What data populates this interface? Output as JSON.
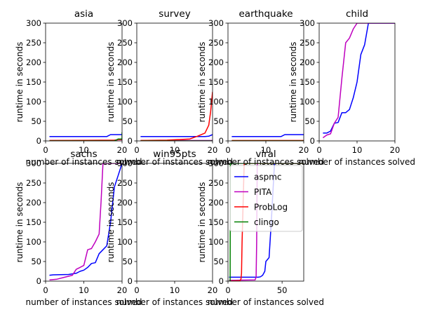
{
  "figure": {
    "legend": {
      "placement": "upper-left of viral panel",
      "entries": [
        {
          "name": "aspmc",
          "color": "#0000ff"
        },
        {
          "name": "PITA",
          "color": "#bf00bf"
        },
        {
          "name": "ProbLog",
          "color": "#ff0000"
        },
        {
          "name": "clingo",
          "color": "#008000"
        }
      ]
    }
  },
  "chart_data": [
    {
      "type": "line",
      "title": "asia",
      "xlabel": "number of instances solved",
      "ylabel": "runtime in seconds",
      "xlim": [
        0,
        20
      ],
      "ylim": [
        0,
        300
      ],
      "xticks": [
        0,
        10,
        20
      ],
      "yticks": [
        0,
        50,
        100,
        150,
        200,
        250,
        300
      ],
      "series": [
        {
          "name": "aspmc",
          "color": "#0000ff",
          "x": [
            1,
            16,
            17,
            20
          ],
          "y": [
            11,
            11,
            16,
            16
          ]
        },
        {
          "name": "PITA",
          "color": "#bf00bf",
          "x": [
            1,
            18,
            19,
            20
          ],
          "y": [
            1,
            1,
            3,
            3
          ]
        },
        {
          "name": "ProbLog",
          "color": "#ff0000",
          "x": [
            1,
            18,
            19,
            20
          ],
          "y": [
            1,
            2,
            3,
            4
          ]
        },
        {
          "name": "clingo",
          "color": "#008000",
          "x": [
            1,
            18,
            19,
            20,
            20
          ],
          "y": [
            0,
            0,
            5,
            5,
            22
          ]
        }
      ]
    },
    {
      "type": "line",
      "title": "survey",
      "xlabel": "number of instances solved",
      "ylabel": "runtime in seconds",
      "xlim": [
        0,
        20
      ],
      "ylim": [
        0,
        300
      ],
      "xticks": [
        0,
        10,
        20
      ],
      "yticks": [
        0,
        50,
        100,
        150,
        200,
        250,
        300
      ],
      "series": [
        {
          "name": "aspmc",
          "color": "#0000ff",
          "x": [
            1,
            18,
            19,
            20
          ],
          "y": [
            11,
            11,
            12,
            16
          ]
        },
        {
          "name": "PITA",
          "color": "#bf00bf",
          "x": [
            1,
            20
          ],
          "y": [
            1,
            1
          ]
        },
        {
          "name": "ProbLog",
          "color": "#ff0000",
          "x": [
            1,
            8,
            14,
            16,
            18,
            19,
            19.5,
            20
          ],
          "y": [
            1,
            2,
            5,
            12,
            20,
            40,
            75,
            125
          ]
        },
        {
          "name": "clingo",
          "color": "#008000",
          "x": [
            1,
            20
          ],
          "y": [
            0,
            0
          ]
        }
      ]
    },
    {
      "type": "line",
      "title": "earthquake",
      "xlabel": "number of instances solved",
      "ylabel": "runtime in seconds",
      "xlim": [
        0,
        20
      ],
      "ylim": [
        0,
        300
      ],
      "xticks": [
        0,
        10,
        20
      ],
      "yticks": [
        0,
        50,
        100,
        150,
        200,
        250,
        300
      ],
      "series": [
        {
          "name": "aspmc",
          "color": "#0000ff",
          "x": [
            1,
            14,
            15,
            20
          ],
          "y": [
            11,
            11,
            16,
            16
          ]
        },
        {
          "name": "PITA",
          "color": "#bf00bf",
          "x": [
            1,
            20
          ],
          "y": [
            0,
            0
          ]
        },
        {
          "name": "ProbLog",
          "color": "#ff0000",
          "x": [
            1,
            20
          ],
          "y": [
            1,
            1
          ]
        },
        {
          "name": "clingo",
          "color": "#008000",
          "x": [
            1,
            20
          ],
          "y": [
            0,
            0
          ]
        }
      ]
    },
    {
      "type": "line",
      "title": "child",
      "xlabel": "number of instances solved",
      "ylabel": "runtime in seconds",
      "xlim": [
        0,
        20
      ],
      "ylim": [
        0,
        300
      ],
      "xticks": [
        0,
        10,
        20
      ],
      "yticks": [
        0,
        50,
        100,
        150,
        200,
        250,
        300
      ],
      "series": [
        {
          "name": "aspmc",
          "color": "#0000ff",
          "x": [
            1,
            2,
            3,
            4,
            5,
            6,
            7,
            8,
            9,
            10,
            11,
            12,
            13,
            20
          ],
          "y": [
            20,
            20,
            25,
            45,
            47,
            72,
            72,
            80,
            110,
            150,
            220,
            245,
            300,
            300
          ]
        },
        {
          "name": "PITA",
          "color": "#bf00bf",
          "x": [
            1,
            2,
            3,
            4,
            5,
            6,
            7,
            8,
            9,
            10,
            20
          ],
          "y": [
            8,
            15,
            18,
            45,
            60,
            160,
            250,
            262,
            285,
            300,
            300
          ]
        },
        {
          "name": "ProbLog",
          "color": "#ff0000",
          "x": [],
          "y": []
        },
        {
          "name": "clingo",
          "color": "#008000",
          "x": [],
          "y": []
        }
      ]
    },
    {
      "type": "line",
      "title": "sachs",
      "xlabel": "number of instances solved",
      "ylabel": "runtime in seconds",
      "xlim": [
        0,
        20
      ],
      "ylim": [
        0,
        300
      ],
      "xticks": [
        0,
        10,
        20
      ],
      "yticks": [
        0,
        50,
        100,
        150,
        200,
        250,
        300
      ],
      "series": [
        {
          "name": "aspmc",
          "color": "#0000ff",
          "x": [
            1,
            2,
            6,
            8,
            9,
            10,
            11,
            12,
            13,
            14,
            15,
            16,
            17,
            18,
            19,
            20
          ],
          "y": [
            15,
            16,
            17,
            20,
            25,
            28,
            35,
            45,
            47,
            70,
            80,
            90,
            150,
            240,
            270,
            300
          ]
        },
        {
          "name": "PITA",
          "color": "#bf00bf",
          "x": [
            1,
            3,
            5,
            7,
            8,
            9,
            10,
            11,
            12,
            13,
            14,
            14.5,
            15,
            20
          ],
          "y": [
            3,
            5,
            10,
            15,
            30,
            35,
            40,
            80,
            83,
            100,
            120,
            200,
            300,
            300
          ]
        },
        {
          "name": "ProbLog",
          "color": "#ff0000",
          "x": [],
          "y": []
        },
        {
          "name": "clingo",
          "color": "#008000",
          "x": [],
          "y": []
        }
      ]
    },
    {
      "type": "line",
      "title": "win95pts",
      "xlabel": "number of instances solved",
      "ylabel": "runtime in seconds",
      "xlim": [
        0,
        20
      ],
      "ylim": [
        0,
        300
      ],
      "xticks": [
        0,
        10,
        20
      ],
      "yticks": [
        0,
        50,
        100,
        150,
        200,
        250,
        300
      ],
      "series": []
    },
    {
      "type": "line",
      "title": "viral",
      "xlabel": "number of instances solved",
      "ylabel": "runtime in seconds",
      "xlim": [
        0,
        70
      ],
      "ylim": [
        0,
        300
      ],
      "xticks": [
        0,
        50
      ],
      "yticks": [
        0,
        50,
        100,
        150,
        200,
        250,
        300
      ],
      "series": [
        {
          "name": "aspmc",
          "color": "#0000ff",
          "x": [
            1,
            28,
            30,
            32,
            34,
            35,
            38,
            40,
            43,
            70
          ],
          "y": [
            10,
            10,
            11,
            15,
            25,
            50,
            60,
            150,
            300,
            300
          ]
        },
        {
          "name": "PITA",
          "color": "#bf00bf",
          "x": [
            1,
            25,
            26,
            26.5,
            27,
            70
          ],
          "y": [
            2,
            3,
            10,
            100,
            300,
            300
          ]
        },
        {
          "name": "ProbLog",
          "color": "#ff0000",
          "x": [
            1,
            11,
            12,
            12.5,
            13,
            14,
            15,
            70
          ],
          "y": [
            0,
            1,
            5,
            20,
            100,
            200,
            300,
            300
          ]
        },
        {
          "name": "clingo",
          "color": "#008000",
          "x": [
            1,
            2,
            2.2,
            70
          ],
          "y": [
            0,
            0,
            300,
            300
          ]
        }
      ]
    }
  ]
}
